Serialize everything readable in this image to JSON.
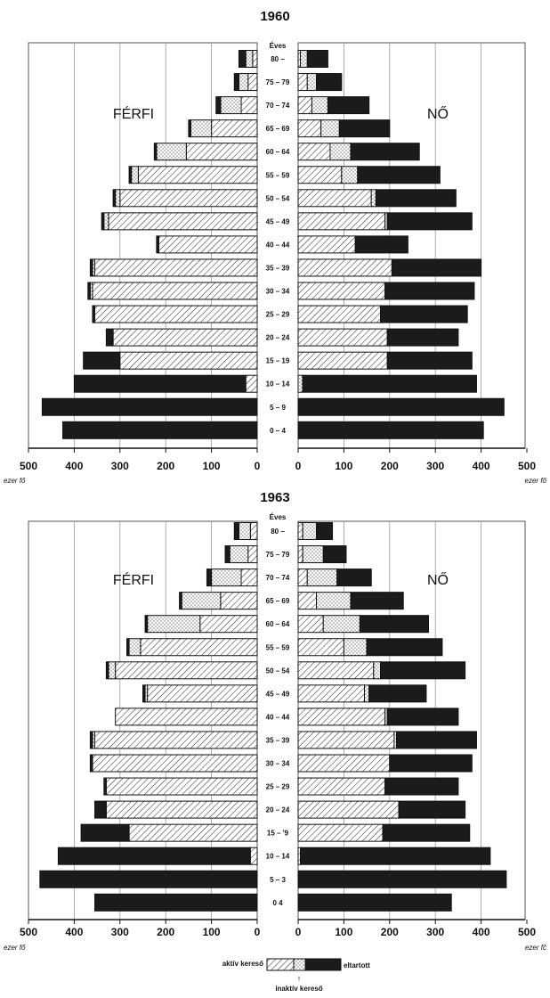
{
  "colors": {
    "active": "#ffffff",
    "inactive": "#ffffff",
    "dependent": "#1b1b1b",
    "grid": "#888888",
    "ink": "#111111"
  },
  "legend": {
    "active_label": "aktív kereső",
    "dependent_label": "eltartott",
    "inactive_label": "inaktív kereső",
    "arrow": "↑"
  },
  "chart_data": [
    {
      "type": "population-pyramid",
      "title": "1960",
      "age_header": "Éves",
      "male_label": "FÉRFI",
      "female_label": "NŐ",
      "unit_label_left": "ezer fő",
      "unit_label_right": "ezer fő",
      "age_groups": [
        "80 –",
        "75 – 79",
        "70 – 74",
        "65 – 69",
        "60 – 64",
        "55 – 59",
        "50 – 54",
        "45 – 49",
        "40 – 44",
        "35 – 39",
        "30 – 34",
        "25 – 29",
        "20 – 24",
        "15 – 19",
        "10 – 14",
        "5 – 9",
        "0 – 4"
      ],
      "x_ticks": [
        500,
        400,
        300,
        200,
        100,
        0
      ],
      "xlim": [
        0,
        500
      ],
      "series_categories": [
        "aktív kereső",
        "inaktív kereső",
        "eltartott"
      ],
      "male": {
        "active": [
          10,
          20,
          35,
          100,
          155,
          260,
          300,
          325,
          215,
          355,
          360,
          355,
          315,
          300,
          25,
          0,
          0
        ],
        "inactive": [
          15,
          20,
          45,
          45,
          65,
          15,
          10,
          10,
          0,
          5,
          5,
          0,
          0,
          0,
          0,
          0,
          0
        ],
        "dependent": [
          15,
          10,
          10,
          5,
          5,
          5,
          5,
          5,
          5,
          5,
          5,
          5,
          15,
          80,
          375,
          470,
          425
        ]
      },
      "female": {
        "active": [
          5,
          20,
          30,
          50,
          70,
          95,
          160,
          190,
          125,
          205,
          190,
          180,
          195,
          195,
          0,
          0,
          0
        ],
        "inactive": [
          15,
          20,
          35,
          40,
          45,
          35,
          10,
          5,
          0,
          0,
          0,
          0,
          0,
          0,
          10,
          0,
          0
        ],
        "dependent": [
          45,
          55,
          90,
          110,
          150,
          180,
          175,
          185,
          115,
          195,
          195,
          190,
          155,
          185,
          380,
          450,
          405
        ]
      }
    },
    {
      "type": "population-pyramid",
      "title": "1963",
      "age_header": "Éves",
      "male_label": "FÉRFI",
      "female_label": "NŐ",
      "unit_label_left": "ezer fő",
      "unit_label_right": "ezer fč",
      "age_groups": [
        "80 –",
        "75 – 79",
        "70 – 74",
        "65 – 69",
        "60 – 64",
        "55 – 59",
        "50 – 54",
        "45 – 49",
        "40 – 44",
        "35 – 39",
        "30 – 34",
        "25 – 29",
        "20 – 24",
        "15 – '9",
        "10 – 14",
        "5 – 3",
        "0  4"
      ],
      "x_ticks": [
        500,
        400,
        300,
        200,
        100,
        0
      ],
      "xlim": [
        0,
        500
      ],
      "series_categories": [
        "aktív kereső",
        "inaktív kereső",
        "eltartott"
      ],
      "male": {
        "active": [
          15,
          20,
          35,
          80,
          125,
          255,
          310,
          240,
          310,
          355,
          360,
          330,
          330,
          280,
          15,
          0,
          0
        ],
        "inactive": [
          25,
          40,
          65,
          85,
          115,
          25,
          15,
          5,
          0,
          5,
          0,
          0,
          0,
          0,
          0,
          0,
          0
        ],
        "dependent": [
          10,
          10,
          10,
          5,
          5,
          5,
          5,
          5,
          0,
          5,
          5,
          5,
          25,
          105,
          420,
          475,
          355
        ]
      },
      "female": {
        "active": [
          10,
          10,
          20,
          40,
          55,
          100,
          165,
          145,
          190,
          210,
          200,
          190,
          220,
          185,
          5,
          0,
          0
        ],
        "inactive": [
          30,
          45,
          65,
          75,
          80,
          50,
          15,
          10,
          5,
          5,
          0,
          0,
          0,
          0,
          0,
          0,
          0
        ],
        "dependent": [
          35,
          50,
          75,
          115,
          150,
          165,
          185,
          125,
          155,
          175,
          180,
          160,
          145,
          190,
          415,
          455,
          335
        ]
      }
    }
  ]
}
